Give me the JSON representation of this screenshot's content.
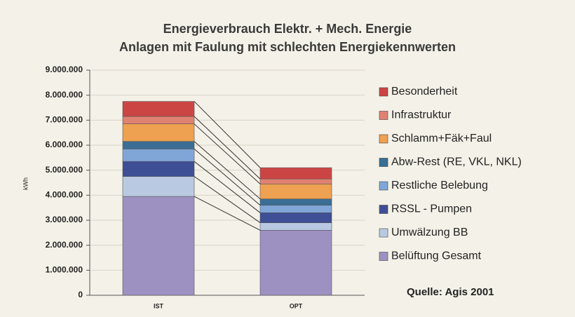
{
  "chart_data": {
    "type": "stacked_bar",
    "title": "Energieverbrauch Elektr. + Mech. Energie",
    "subtitle": "Anlagen mit Faulung mit schlechten Energiekennwerten",
    "y_label": "kWh",
    "annotation": "Quelle: Agis 2001",
    "categories": [
      "IST",
      "OPT"
    ],
    "series": [
      {
        "name": "Belüftung Gesamt",
        "color": "#9d91c2",
        "values": [
          3950000,
          2600000
        ]
      },
      {
        "name": "Umwälzung BB",
        "color": "#b9c9e2",
        "values": [
          800000,
          300000
        ]
      },
      {
        "name": "RSSL - Pumpen",
        "color": "#3e4f96",
        "values": [
          600000,
          400000
        ]
      },
      {
        "name": "Restliche Belebung",
        "color": "#80a6d8",
        "values": [
          500000,
          300000
        ]
      },
      {
        "name": "Abw-Rest (RE, VKL, NKL)",
        "color": "#3a6e95",
        "values": [
          300000,
          250000
        ]
      },
      {
        "name": "Schlamm+Fäk+Faul",
        "color": "#eea150",
        "values": [
          700000,
          600000
        ]
      },
      {
        "name": "Infrastruktur",
        "color": "#e08272",
        "values": [
          300000,
          200000
        ]
      },
      {
        "name": "Besonderheit",
        "color": "#cc4545",
        "values": [
          600000,
          450000
        ]
      }
    ],
    "ylim": [
      0,
      9000000
    ],
    "yticks": [
      {
        "value": 0,
        "label": "0"
      },
      {
        "value": 1000000,
        "label": "1.000.000"
      },
      {
        "value": 2000000,
        "label": "2.000.000"
      },
      {
        "value": 3000000,
        "label": "3.000.000"
      },
      {
        "value": 4000000,
        "label": "4.000.000"
      },
      {
        "value": 5000000,
        "label": "5.000.000"
      },
      {
        "value": 6000000,
        "label": "6.000.000"
      },
      {
        "value": 7000000,
        "label": "7.000.000"
      },
      {
        "value": 8000000,
        "label": "8.000.000"
      },
      {
        "value": 9000000,
        "label": "9.000.000"
      }
    ],
    "grid": true,
    "legend": "right"
  }
}
